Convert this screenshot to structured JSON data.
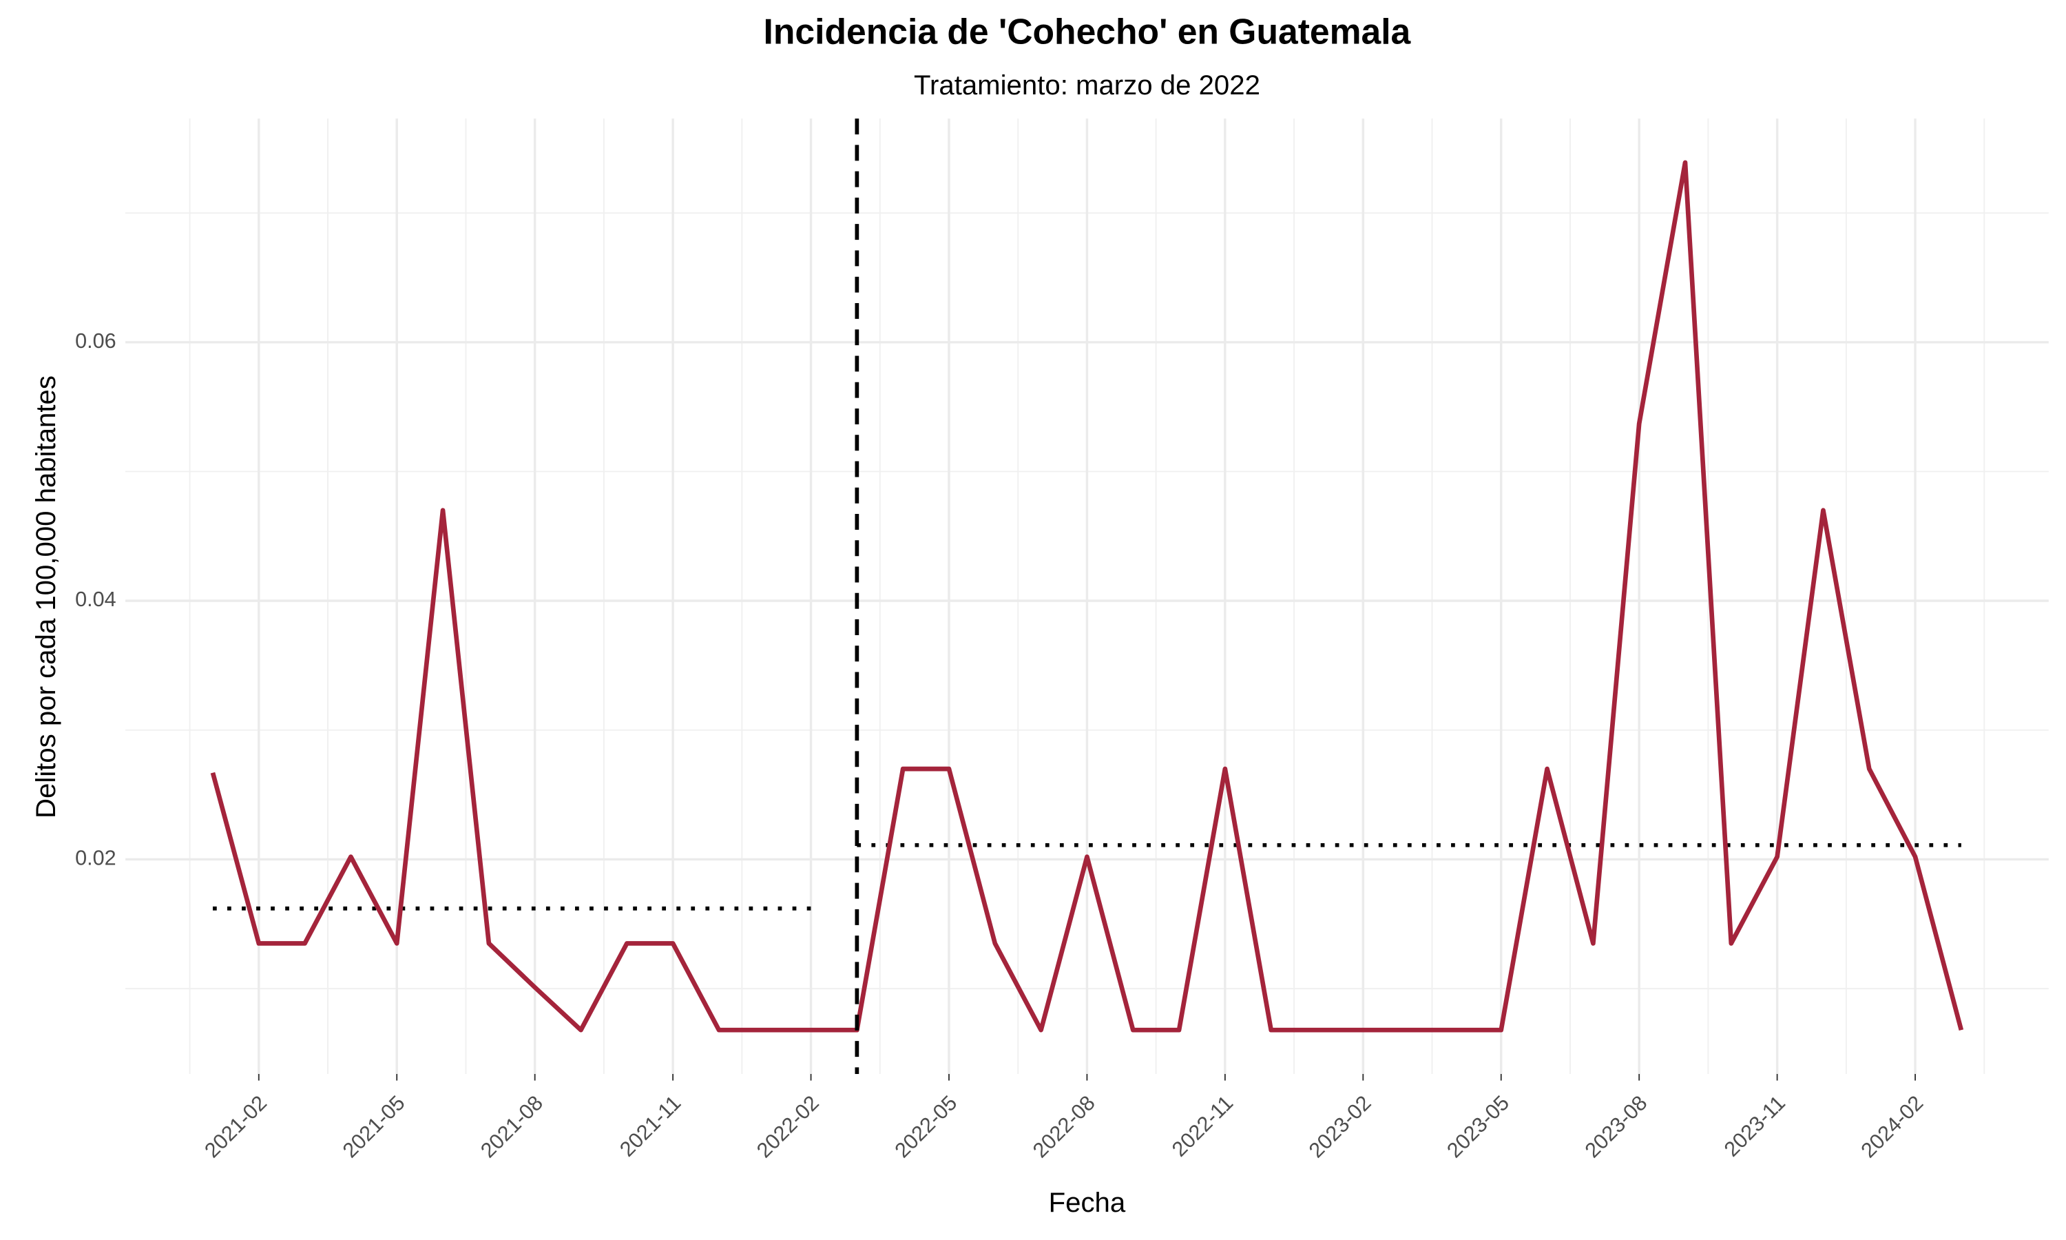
{
  "chart_data": {
    "type": "line",
    "title": "Incidencia de 'Cohecho' en Guatemala",
    "subtitle": "Tratamiento: marzo de 2022",
    "x_label": "Fecha",
    "y_label": "Delitos por cada 100,000 habitantes",
    "color": "#a4243b",
    "x": [
      "2021-01",
      "2021-02",
      "2021-03",
      "2021-04",
      "2021-05",
      "2021-06",
      "2021-07",
      "2021-08",
      "2021-09",
      "2021-10",
      "2021-11",
      "2021-12",
      "2022-01",
      "2022-02",
      "2022-03",
      "2022-04",
      "2022-05",
      "2022-06",
      "2022-07",
      "2022-08",
      "2022-09",
      "2022-10",
      "2022-11",
      "2022-12",
      "2023-01",
      "2023-02",
      "2023-03",
      "2023-04",
      "2023-05",
      "2023-06",
      "2023-07",
      "2023-08",
      "2023-09",
      "2023-10",
      "2023-11",
      "2023-12",
      "2024-01",
      "2024-02",
      "2024-03"
    ],
    "values": [
      0.0267,
      0.0135,
      0.0135,
      0.0202,
      0.0135,
      0.047,
      0.0135,
      0.0101,
      0.0068,
      0.0135,
      0.0135,
      0.0068,
      0.0068,
      0.0068,
      0.0068,
      0.027,
      0.027,
      0.0135,
      0.0068,
      0.0202,
      0.0068,
      0.0068,
      0.027,
      0.0068,
      0.0068,
      0.0068,
      0.0068,
      0.0068,
      0.0068,
      0.027,
      0.0135,
      0.0537,
      0.0739,
      0.0135,
      0.0202,
      0.047,
      0.027,
      0.0202,
      0.0068
    ],
    "xticks": [
      "2021-02",
      "2021-05",
      "2021-08",
      "2021-11",
      "2022-02",
      "2022-05",
      "2022-08",
      "2022-11",
      "2023-02",
      "2023-05",
      "2023-08",
      "2023-11",
      "2024-02"
    ],
    "ylim": [
      0.0034,
      0.0773
    ],
    "yticks": [
      0.02,
      0.04,
      0.06
    ],
    "grid": true,
    "treatment_date": "2022-03",
    "reference_lines": [
      {
        "start": "2021-01",
        "end": "2022-02",
        "value": 0.0162
      },
      {
        "start": "2022-03",
        "end": "2024-03",
        "value": 0.0211
      }
    ]
  }
}
